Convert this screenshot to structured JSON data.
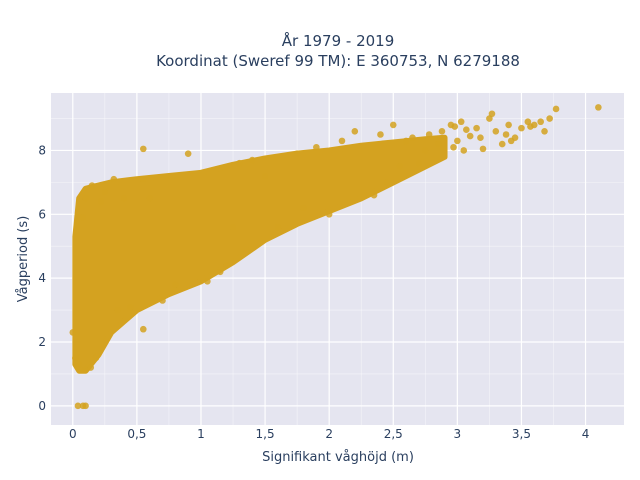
{
  "chart_data": {
    "type": "scatter",
    "title_lines": [
      "År 1979 - 2019",
      "Koordinat (Sweref 99 TM): E 360753, N 6279188"
    ],
    "xlabel": "Signifikant våghöjd (m)",
    "ylabel": "Vågperiod (s)",
    "xlim": [
      -0.17,
      4.3
    ],
    "ylim": [
      -0.6,
      9.8
    ],
    "x_ticks": [
      0,
      0.5,
      1,
      1.5,
      2,
      2.5,
      3,
      3.5,
      4
    ],
    "x_tick_labels": [
      "0",
      "0,5",
      "1",
      "1,5",
      "2",
      "2,5",
      "3",
      "3,5",
      "4"
    ],
    "y_ticks": [
      0,
      2,
      4,
      6,
      8
    ],
    "y_tick_labels": [
      "0",
      "2",
      "4",
      "6",
      "8"
    ],
    "grid": true,
    "colors": {
      "marker": "#d4a220",
      "plot_bg": "#e5e5f0",
      "grid": "#ffffff"
    },
    "bulk_envelope": {
      "x": [
        0.02,
        0.05,
        0.1,
        0.2,
        0.3,
        0.5,
        0.75,
        1.0,
        1.25,
        1.5,
        1.75,
        2.0,
        2.25,
        2.5,
        2.75,
        2.9
      ],
      "y_low": [
        1.3,
        1.1,
        1.1,
        1.6,
        2.3,
        3.0,
        3.5,
        3.9,
        4.5,
        5.2,
        5.7,
        6.1,
        6.5,
        7.0,
        7.5,
        7.8
      ],
      "y_high": [
        5.3,
        6.5,
        6.8,
        6.9,
        7.0,
        7.1,
        7.2,
        7.3,
        7.55,
        7.75,
        7.9,
        8.0,
        8.15,
        8.25,
        8.35,
        8.4
      ]
    },
    "points": [
      {
        "x": 0.08,
        "y": 0.0
      },
      {
        "x": 0.04,
        "y": 0.0
      },
      {
        "x": 0.1,
        "y": 0.0
      },
      {
        "x": 0.02,
        "y": 1.5
      },
      {
        "x": 0.05,
        "y": 1.3
      },
      {
        "x": 0.1,
        "y": 1.15
      },
      {
        "x": 0.14,
        "y": 1.2
      },
      {
        "x": 0.18,
        "y": 1.5
      },
      {
        "x": 0.0,
        "y": 2.3
      },
      {
        "x": 0.03,
        "y": 2.9
      },
      {
        "x": 0.08,
        "y": 5.9
      },
      {
        "x": 0.1,
        "y": 6.5
      },
      {
        "x": 0.15,
        "y": 6.9
      },
      {
        "x": 0.25,
        "y": 6.7
      },
      {
        "x": 0.32,
        "y": 7.1
      },
      {
        "x": 0.22,
        "y": 6.4
      },
      {
        "x": 0.4,
        "y": 6.5
      },
      {
        "x": 0.55,
        "y": 7.1
      },
      {
        "x": 0.6,
        "y": 6.5
      },
      {
        "x": 0.55,
        "y": 8.05
      },
      {
        "x": 0.9,
        "y": 7.9
      },
      {
        "x": 0.55,
        "y": 2.4
      },
      {
        "x": 0.35,
        "y": 3.0
      },
      {
        "x": 0.45,
        "y": 3.1
      },
      {
        "x": 0.7,
        "y": 3.3
      },
      {
        "x": 0.8,
        "y": 3.8
      },
      {
        "x": 1.05,
        "y": 3.9
      },
      {
        "x": 1.15,
        "y": 4.2
      },
      {
        "x": 1.2,
        "y": 4.4
      },
      {
        "x": 1.25,
        "y": 5.6
      },
      {
        "x": 1.3,
        "y": 7.6
      },
      {
        "x": 1.4,
        "y": 7.7
      },
      {
        "x": 1.5,
        "y": 7.2
      },
      {
        "x": 1.6,
        "y": 5.6
      },
      {
        "x": 1.75,
        "y": 7.9
      },
      {
        "x": 1.8,
        "y": 6.2
      },
      {
        "x": 1.9,
        "y": 8.1
      },
      {
        "x": 2.0,
        "y": 6.0
      },
      {
        "x": 2.1,
        "y": 8.3
      },
      {
        "x": 2.2,
        "y": 8.6
      },
      {
        "x": 2.35,
        "y": 6.6
      },
      {
        "x": 2.4,
        "y": 8.5
      },
      {
        "x": 2.45,
        "y": 7.0
      },
      {
        "x": 2.5,
        "y": 8.8
      },
      {
        "x": 2.55,
        "y": 7.5
      },
      {
        "x": 2.6,
        "y": 8.3
      },
      {
        "x": 2.65,
        "y": 8.4
      },
      {
        "x": 2.7,
        "y": 7.6
      },
      {
        "x": 2.75,
        "y": 8.0
      },
      {
        "x": 2.78,
        "y": 8.5
      },
      {
        "x": 2.85,
        "y": 8.2
      },
      {
        "x": 2.88,
        "y": 8.6
      },
      {
        "x": 2.95,
        "y": 8.8
      },
      {
        "x": 2.97,
        "y": 8.1
      },
      {
        "x": 3.0,
        "y": 8.3
      },
      {
        "x": 3.03,
        "y": 8.9
      },
      {
        "x": 3.05,
        "y": 8.0
      },
      {
        "x": 3.1,
        "y": 8.45
      },
      {
        "x": 3.15,
        "y": 8.7
      },
      {
        "x": 3.18,
        "y": 8.4
      },
      {
        "x": 3.2,
        "y": 8.05
      },
      {
        "x": 3.25,
        "y": 9.0
      },
      {
        "x": 3.3,
        "y": 8.6
      },
      {
        "x": 3.35,
        "y": 8.2
      },
      {
        "x": 3.38,
        "y": 8.5
      },
      {
        "x": 3.4,
        "y": 8.8
      },
      {
        "x": 3.42,
        "y": 8.3
      },
      {
        "x": 3.45,
        "y": 8.4
      },
      {
        "x": 3.5,
        "y": 8.7
      },
      {
        "x": 3.55,
        "y": 8.9
      },
      {
        "x": 3.57,
        "y": 8.75
      },
      {
        "x": 3.6,
        "y": 8.8
      },
      {
        "x": 3.65,
        "y": 8.9
      },
      {
        "x": 3.68,
        "y": 8.6
      },
      {
        "x": 3.72,
        "y": 9.0
      },
      {
        "x": 3.77,
        "y": 9.3
      },
      {
        "x": 3.27,
        "y": 9.15
      },
      {
        "x": 3.07,
        "y": 8.65
      },
      {
        "x": 2.98,
        "y": 8.75
      },
      {
        "x": 4.1,
        "y": 9.35
      }
    ]
  }
}
